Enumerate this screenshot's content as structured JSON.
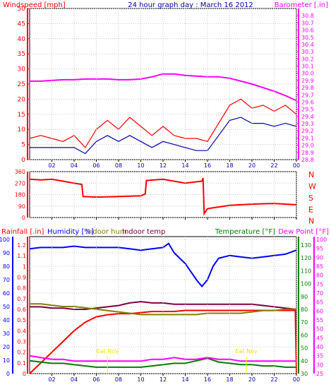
{
  "chart_data": [
    {
      "type": "line",
      "title": "24 hour graph day : March 16 2012",
      "left_axis_label": "Windspeed [mph]",
      "right_axis_label": "Barometer [.in]",
      "x_tick_labels": [
        "02",
        "04",
        "06",
        "08",
        "10",
        "12",
        "14",
        "16",
        "18",
        "20",
        "22",
        "00"
      ],
      "x_range": [
        0,
        24
      ],
      "left_ylim": [
        0,
        50
      ],
      "left_ticks": [
        0,
        5,
        10,
        15,
        20,
        25,
        30,
        35,
        40,
        45,
        50
      ],
      "right_ylim": [
        28.8,
        30.9
      ],
      "right_ticks": [
        28.8,
        28.9,
        29.0,
        29.1,
        29.2,
        29.3,
        29.4,
        29.5,
        29.6,
        29.7,
        29.8,
        29.9,
        30.0,
        30.1,
        30.2,
        30.3,
        30.4,
        30.5,
        30.6,
        30.7,
        30.8
      ],
      "series": [
        {
          "color": "#ff00ff",
          "axis": "right",
          "x": [
            0,
            1,
            2,
            3,
            4,
            5,
            6,
            7,
            8,
            9,
            10,
            11,
            12,
            13,
            14,
            15,
            16,
            17,
            18,
            19,
            20,
            21,
            22,
            23,
            24
          ],
          "y": [
            29.89,
            29.89,
            29.9,
            29.91,
            29.91,
            29.92,
            29.92,
            29.92,
            29.91,
            29.91,
            29.92,
            29.95,
            29.99,
            29.99,
            29.97,
            29.96,
            29.95,
            29.95,
            29.93,
            29.89,
            29.85,
            29.8,
            29.75,
            29.69,
            29.62
          ]
        },
        {
          "color": "#ff0000",
          "axis": "left",
          "x": [
            0,
            1,
            2,
            3,
            4,
            5,
            6,
            7,
            8,
            9,
            10,
            11,
            12,
            13,
            14,
            15,
            16,
            17,
            18,
            19,
            20,
            21,
            22,
            23,
            24
          ],
          "y": [
            7,
            8,
            7,
            6,
            8,
            4,
            10,
            13,
            10,
            14,
            11,
            8,
            11,
            8,
            7,
            7,
            6,
            12,
            18,
            20,
            17,
            18,
            16,
            18,
            15
          ]
        },
        {
          "color": "#0000aa",
          "axis": "left",
          "x": [
            0,
            1,
            2,
            3,
            4,
            5,
            6,
            7,
            8,
            9,
            10,
            11,
            12,
            13,
            14,
            15,
            16,
            17,
            18,
            19,
            20,
            21,
            22,
            23,
            24
          ],
          "y": [
            4,
            4,
            4,
            4,
            4,
            2,
            6,
            8,
            6,
            8,
            6,
            4,
            6,
            5,
            4,
            3,
            3,
            8,
            13,
            14,
            12,
            12,
            11,
            12,
            11
          ]
        }
      ]
    },
    {
      "type": "line",
      "right_axis_label": "N W S E N",
      "right_ticks": [
        "N",
        "W",
        "S",
        "E",
        "N"
      ],
      "x_tick_labels": [
        "02",
        "04",
        "06",
        "08",
        "10",
        "12",
        "14",
        "16",
        "18",
        "20",
        "22",
        "00"
      ],
      "x_range": [
        0,
        24
      ],
      "ylim": [
        0,
        360
      ],
      "y_ticks": [
        0,
        90,
        180,
        270,
        360
      ],
      "series": [
        {
          "color": "#ff0000",
          "x": [
            0,
            1,
            2,
            3,
            4,
            4.7,
            4.8,
            6,
            8,
            10,
            10.4,
            10.5,
            12,
            14,
            15.5,
            15.6,
            15.7,
            16,
            18,
            20,
            22,
            24
          ],
          "y": [
            300,
            295,
            300,
            285,
            270,
            260,
            165,
            160,
            165,
            170,
            185,
            290,
            300,
            270,
            285,
            310,
            30,
            70,
            95,
            105,
            110,
            100
          ]
        }
      ]
    },
    {
      "type": "line",
      "labels": {
        "rainfall": "Rainfall [.in]",
        "humidity": "Humidity [%]",
        "indoor_hum": "Indoor hum",
        "indoor_temp": "Indoor temp",
        "temperature": "Temperature [°F]",
        "dew_point": "Dew Point [°F]"
      },
      "annotations": [
        "Eat Nov",
        "Eat Nov"
      ],
      "x_tick_labels": [
        "02",
        "04",
        "06",
        "08",
        "10",
        "12",
        "14",
        "16",
        "18",
        "20",
        "22",
        "00"
      ],
      "x_range": [
        0,
        24
      ],
      "rain_ticks": [
        "0",
        "0.1",
        "0.2",
        "0.3",
        "0.4",
        "0.5",
        "0.6",
        "0.7",
        "0.8",
        "0.9",
        "1",
        "1.1",
        "1.2"
      ],
      "humidity_ticks": [
        0,
        10,
        20,
        30,
        40,
        50,
        60,
        70,
        80,
        90,
        100
      ],
      "temp_ticks": [
        30,
        40,
        50,
        60,
        70,
        80,
        90,
        100,
        110,
        120,
        130
      ],
      "dew_ticks": [
        25,
        30,
        35,
        40,
        45,
        50,
        55,
        60,
        65,
        70,
        75,
        80,
        85,
        90,
        95,
        100
      ],
      "series": [
        {
          "name": "Humidity [%]",
          "color": "#0000ff",
          "axis": "humidity",
          "x": [
            0,
            1,
            2,
            3,
            4,
            5,
            6,
            7,
            8,
            9,
            10,
            11,
            12,
            12.5,
            13,
            14,
            15,
            15.5,
            16,
            16.5,
            17,
            18,
            19,
            20,
            21,
            22,
            23,
            24
          ],
          "y": [
            93,
            94,
            94,
            94,
            95,
            94,
            94,
            94,
            94,
            93,
            92,
            93,
            94,
            97,
            90,
            82,
            70,
            65,
            70,
            80,
            86,
            88,
            87,
            86,
            87,
            88,
            89,
            92
          ]
        },
        {
          "name": "Rainfall [.in]",
          "color": "#ff0000",
          "axis": "rain",
          "x": [
            0,
            0.5,
            1,
            2,
            3,
            4,
            5,
            6,
            7,
            8,
            9,
            10,
            11,
            12,
            13,
            14,
            15,
            16,
            17,
            18,
            19,
            20,
            21,
            22,
            23,
            23.9,
            24
          ],
          "y": [
            0,
            0.05,
            0.1,
            0.2,
            0.3,
            0.4,
            0.48,
            0.53,
            0.55,
            0.56,
            0.56,
            0.57,
            0.58,
            0.58,
            0.58,
            0.59,
            0.59,
            0.59,
            0.59,
            0.59,
            0.59,
            0.59,
            0.59,
            0.59,
            0.59,
            0.59,
            0
          ]
        },
        {
          "name": "Indoor temp",
          "color": "#800040",
          "axis": "temp",
          "x": [
            0,
            1,
            2,
            3,
            4,
            5,
            6,
            7,
            8,
            9,
            10,
            11,
            12,
            13,
            14,
            15,
            16,
            17,
            18,
            19,
            20,
            21,
            22,
            23,
            24
          ],
          "y": [
            82,
            82,
            81,
            81,
            80,
            80,
            81,
            82,
            83,
            85,
            86,
            85,
            85,
            84,
            84,
            84,
            84,
            84,
            84,
            84,
            84,
            83,
            82,
            81,
            80
          ]
        },
        {
          "name": "Indoor hum",
          "color": "#808000",
          "axis": "humidity",
          "x": [
            0,
            1,
            2,
            3,
            4,
            5,
            6,
            7,
            8,
            9,
            10,
            11,
            12,
            13,
            14,
            15,
            16,
            17,
            18,
            19,
            20,
            21,
            22,
            23,
            24
          ],
          "y": [
            52,
            52,
            51,
            50,
            50,
            49,
            48,
            47,
            46,
            45,
            44,
            44,
            44,
            44,
            44,
            44,
            45,
            45,
            45,
            45,
            46,
            47,
            47,
            48,
            48
          ]
        },
        {
          "name": "Temperature [°F]",
          "color": "#008000",
          "axis": "temp",
          "x": [
            0,
            1,
            2,
            3,
            4,
            5,
            6,
            7,
            8,
            9,
            10,
            11,
            12,
            13,
            14,
            15,
            16,
            17,
            18,
            19,
            20,
            21,
            22,
            23,
            24
          ],
          "y": [
            40,
            39,
            38,
            38,
            37,
            36,
            35,
            35,
            35,
            35,
            35,
            36,
            37,
            38,
            38,
            40,
            42,
            39,
            38,
            37,
            37,
            36,
            36,
            35,
            35
          ]
        },
        {
          "name": "Dew Point [°F]",
          "color": "#ff00ff",
          "axis": "dew",
          "x": [
            0,
            1,
            2,
            3,
            4,
            5,
            6,
            7,
            8,
            9,
            10,
            11,
            12,
            13,
            14,
            15,
            16,
            17,
            18,
            19,
            20,
            21,
            22,
            23,
            24
          ],
          "y": [
            35,
            34,
            33,
            33,
            32,
            32,
            32,
            32,
            32,
            32,
            32,
            33,
            33,
            34,
            33,
            33,
            34,
            33,
            33,
            32,
            32,
            32,
            32,
            32,
            32
          ]
        }
      ]
    }
  ]
}
